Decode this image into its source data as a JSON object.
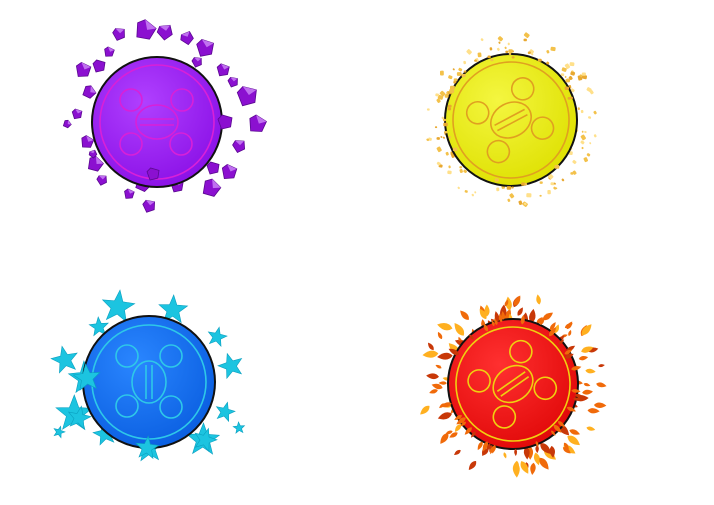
{
  "canvas": {
    "background": "#ffffff"
  },
  "badges": [
    {
      "name": "purple-crystal-badge",
      "effect": "crystals",
      "fill": "#8a10e6",
      "fill_highlight": "#b040ff",
      "line": "#d820d8",
      "particle": "#8b10d0",
      "particle_dark": "#5a0890",
      "particle_light": "#c070f0"
    },
    {
      "name": "yellow-sparkle-badge",
      "effect": "sparkles",
      "fill": "#dee000",
      "fill_highlight": "#f4f640",
      "line": "#e0a020",
      "particle": "#f3c14a",
      "particle_dark": "#e8a830",
      "particle_light": "#ffe08a"
    },
    {
      "name": "blue-star-badge",
      "effect": "stars",
      "fill": "#0a5ee0",
      "fill_highlight": "#2a86ff",
      "line": "#2ec8e8",
      "particle": "#1cc4e0",
      "particle_dark": "#0aa0c0",
      "particle_light": "#60e0f0"
    },
    {
      "name": "red-flame-badge",
      "effect": "flames",
      "fill": "#e00808",
      "fill_highlight": "#ff3030",
      "line": "#f0d010",
      "particle": "#f06a0a",
      "particle_dark": "#c83808",
      "particle_light": "#ffb020"
    }
  ]
}
